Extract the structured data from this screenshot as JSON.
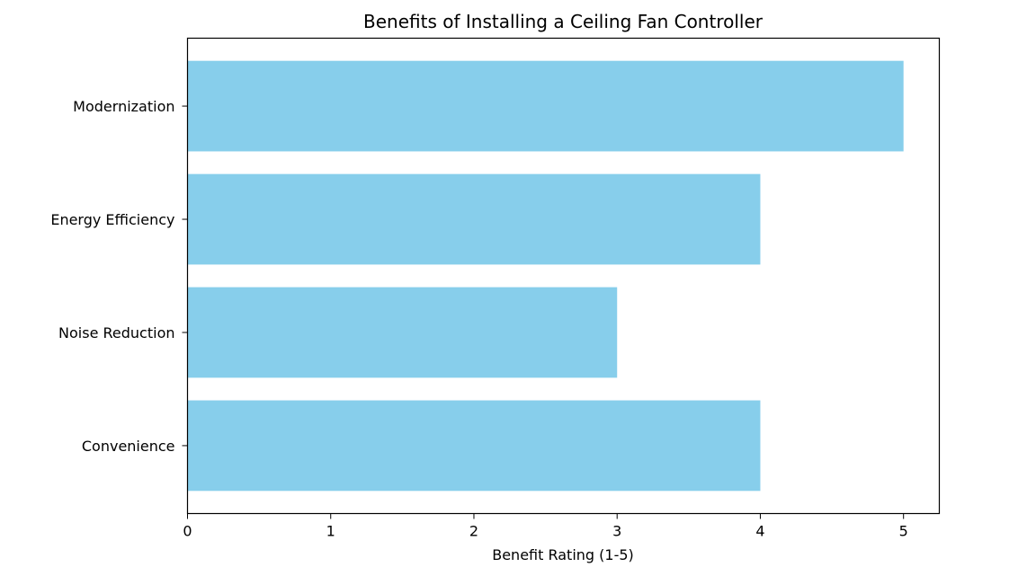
{
  "chart_data": {
    "type": "bar",
    "orientation": "horizontal",
    "title": "Benefits of Installing a Ceiling Fan Controller",
    "xlabel": "Benefit Rating (1-5)",
    "ylabel": "",
    "categories": [
      "Convenience",
      "Noise Reduction",
      "Energy Efficiency",
      "Modernization"
    ],
    "values": [
      4,
      3,
      4,
      5
    ],
    "xlim": [
      0,
      5.25
    ],
    "xticks": [
      0,
      1,
      2,
      3,
      4,
      5
    ],
    "bar_color": "#87ceeb",
    "grid": false,
    "legend": "none"
  }
}
